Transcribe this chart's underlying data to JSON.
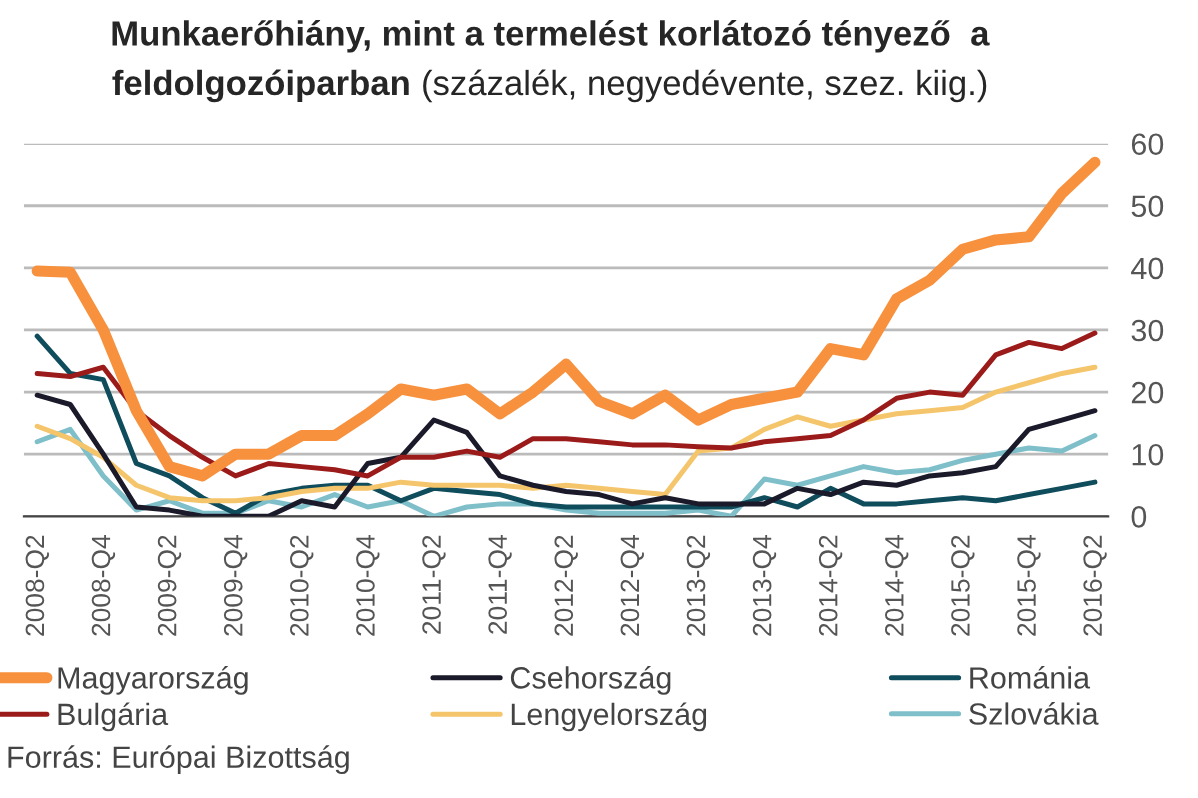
{
  "chart_data": {
    "type": "line",
    "title": "Munkaerőhiány, mint a termelést korlátozó tényező  a feldolgozóiparban",
    "subtitle": "(százalék, negyedévente, szez. kiig.)",
    "categories": [
      "2008-Q2",
      null,
      "2008-Q4",
      null,
      "2009-Q2",
      null,
      "2009-Q4",
      null,
      "2010-Q2",
      null,
      "2010-Q4",
      null,
      "2011-Q2",
      null,
      "2011-Q4",
      null,
      "2012-Q2",
      null,
      "2012-Q4",
      null,
      "2013-Q2",
      null,
      "2013-Q4",
      null,
      "2014-Q2",
      null,
      "2014-Q4",
      null,
      "2015-Q2",
      null,
      "2015-Q4",
      null,
      "2016-Q2"
    ],
    "series": [
      {
        "name": "Magyarország",
        "color": "#f7913d",
        "values": [
          39.5,
          39.3,
          30,
          17,
          8,
          6.5,
          10,
          10,
          13,
          13,
          16.5,
          20.5,
          19.5,
          20.5,
          16.5,
          20,
          24.5,
          18.5,
          16.5,
          19.5,
          15.5,
          18,
          19,
          20,
          27,
          26,
          35,
          38,
          43,
          44.5,
          45,
          52,
          57
        ]
      },
      {
        "name": "Bulgária",
        "color": "#9b1b1b",
        "values": [
          23,
          22.5,
          24,
          17,
          13,
          9.5,
          6.5,
          8.5,
          8,
          7.5,
          6.5,
          9.5,
          9.5,
          10.5,
          9.5,
          12.5,
          12.5,
          12,
          11.5,
          11.5,
          11.2,
          11,
          12,
          12.5,
          13,
          15.5,
          19,
          20,
          19.5,
          26,
          28,
          27,
          29.5
        ]
      },
      {
        "name": "Csehország",
        "color": "#1a1a2a",
        "values": [
          19.5,
          18,
          10,
          1.5,
          1,
          0,
          0,
          0,
          2.5,
          1.5,
          8.5,
          9.5,
          15.5,
          13.5,
          6.5,
          5,
          4,
          3.5,
          2,
          3,
          2,
          2,
          2,
          4.5,
          3.5,
          5.5,
          5,
          6.5,
          7,
          8,
          14,
          15.5,
          17
        ]
      },
      {
        "name": "Lengyelország",
        "color": "#f5c56b",
        "values": [
          14.5,
          12.5,
          9.5,
          5,
          3,
          2.5,
          2.5,
          3,
          4,
          4.5,
          4.5,
          5.5,
          5,
          5,
          5,
          4.5,
          5,
          4.5,
          4,
          3.5,
          10.5,
          11,
          14,
          16,
          14.5,
          15.5,
          16.5,
          17,
          17.5,
          20,
          21.5,
          23,
          24
        ]
      },
      {
        "name": "Románia",
        "color": "#0f4c5c",
        "values": [
          29,
          23,
          22,
          8.5,
          6.5,
          3,
          0.5,
          3.5,
          4.5,
          5,
          5,
          2.5,
          4.5,
          4,
          3.5,
          2,
          1.5,
          1.5,
          1.5,
          1.5,
          1.5,
          1.5,
          3,
          1.5,
          4.5,
          2,
          2,
          2.5,
          3,
          2.5,
          3.5,
          4.5,
          5.5
        ]
      },
      {
        "name": "Szlovákia",
        "color": "#7fbfca",
        "values": [
          12,
          14,
          6.5,
          1,
          2.5,
          0.5,
          0.5,
          2.5,
          1.5,
          3.5,
          1.5,
          2.5,
          0,
          1.5,
          2,
          2,
          1,
          0.5,
          0.5,
          0.5,
          1,
          0,
          6,
          5,
          6.5,
          8,
          7,
          7.5,
          9,
          10,
          11,
          10.5,
          13
        ]
      }
    ],
    "ylim": [
      0,
      60
    ],
    "yticks": [
      0,
      10,
      20,
      30,
      40,
      50,
      60
    ],
    "grid": "y",
    "legend": "bottom",
    "marker": "none",
    "line_style": "solid",
    "annotations": [
      "Forrás: Európai Bizottság"
    ]
  }
}
